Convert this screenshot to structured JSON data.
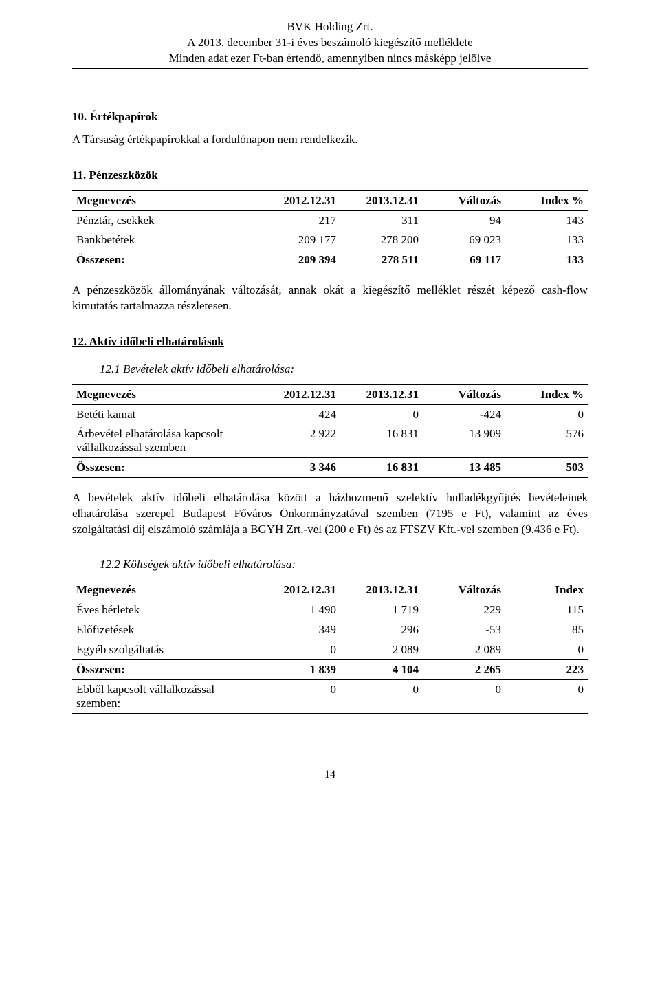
{
  "header": {
    "line1": "BVK Holding Zrt.",
    "line2": "A 2013. december 31-i éves beszámoló kiegészítő melléklete",
    "line3": "Minden adat ezer Ft-ban értendő, amennyiben nincs másképp jelölve"
  },
  "section10": {
    "title": "10. Értékpapírok",
    "text": "A Társaság értékpapírokkal a fordulónapon nem rendelkezik."
  },
  "section11": {
    "title": "11. Pénzeszközök",
    "table": {
      "columns": [
        "Megnevezés",
        "2012.12.31",
        "2013.12.31",
        "Változás",
        "Index %"
      ],
      "rows": [
        [
          "Pénztár, csekkek",
          "217",
          "311",
          "94",
          "143"
        ],
        [
          "Bankbetétek",
          "209 177",
          "278 200",
          "69 023",
          "133"
        ]
      ],
      "total": [
        "Összesen:",
        "209 394",
        "278 511",
        "69 117",
        "133"
      ]
    },
    "text_after": "A pénzeszközök állományának változását, annak okát a kiegészítő melléklet részét képező cash-flow kimutatás tartalmazza részletesen."
  },
  "section12": {
    "title": "12. Aktív időbeli elhatárolások",
    "sub1": {
      "heading": "12.1 Bevételek aktív időbeli elhatárolása:",
      "table": {
        "columns": [
          "Megnevezés",
          "2012.12.31",
          "2013.12.31",
          "Változás",
          "Index %"
        ],
        "rows": [
          [
            "Betéti kamat",
            "424",
            "0",
            "-424",
            "0"
          ],
          [
            "Árbevétel elhatárolása kapcsolt vállalkozással szemben",
            "2 922",
            "16 831",
            "13 909",
            "576"
          ]
        ],
        "total": [
          "Összesen:",
          "3 346",
          "16 831",
          "13 485",
          "503"
        ]
      },
      "text_after": "A bevételek aktív időbeli elhatárolása között a házhozmenő szelektív hulladékgyűjtés bevételeinek elhatárolása szerepel Budapest Főváros Önkormányzatával szemben (7195 e Ft), valamint az éves szolgáltatási díj elszámoló számlája  a BGYH Zrt.-vel (200 e Ft) és az FTSZV Kft.-vel szemben (9.436 e Ft)."
    },
    "sub2": {
      "heading": "12.2 Költségek aktív időbeli elhatárolása:",
      "table": {
        "columns": [
          "Megnevezés",
          "2012.12.31",
          "2013.12.31",
          "Változás",
          "Index"
        ],
        "rows": [
          [
            "Éves bérletek",
            "1 490",
            "1 719",
            "229",
            "115"
          ],
          [
            "Előfizetések",
            "349",
            "296",
            "-53",
            "85"
          ],
          [
            "Egyéb szolgáltatás",
            "0",
            "2 089",
            "2 089",
            "0"
          ]
        ],
        "total": [
          "Összesen:",
          "1 839",
          "4 104",
          "2 265",
          "223"
        ],
        "extra": [
          "Ebből kapcsolt vállalkozással szemben:",
          "0",
          "0",
          "0",
          "0"
        ]
      }
    }
  },
  "page_number": "14"
}
